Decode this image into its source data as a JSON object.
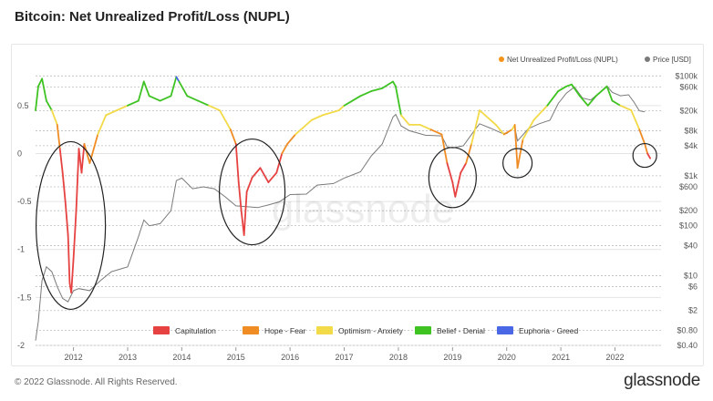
{
  "title": "Bitcoin: Net Unrealized Profit/Loss (NUPL)",
  "footer": {
    "copyright": "© 2022 Glassnode. All Rights Reserved.",
    "brand": "glassnode",
    "watermark": "glassnode"
  },
  "colors": {
    "Capitulation": "#e74242",
    "Hope - Fear": "#f08c24",
    "Optimism - Anxiety": "#f2da48",
    "Belief - Denial": "#3ec322",
    "Euphoria - Greed": "#4a68e6",
    "nupl_legend": "#f7931a",
    "price": "#7a7a7a"
  },
  "chart_data": {
    "type": "line",
    "title": "Bitcoin: Net Unrealized Profit/Loss (NUPL)",
    "xlim": [
      2011.3,
      2022.85
    ],
    "left_axis": {
      "ylim": [
        -2,
        0.85
      ],
      "ticks": [
        "0.5",
        "0",
        "-0.5",
        "-1",
        "-1.5",
        "-2"
      ],
      "tick_values": [
        0.5,
        0,
        -0.5,
        -1,
        -1.5,
        -2
      ]
    },
    "right_axis": {
      "scale": "log",
      "ylim": [
        0.4,
        120000
      ],
      "ticks": [
        "$100k",
        "$60k",
        "$20k",
        "$8k",
        "$4k",
        "$1k",
        "$600",
        "$200",
        "$100",
        "$40",
        "$10",
        "$6",
        "$2",
        "$0.80",
        "$0.40"
      ],
      "tick_values": [
        100000,
        60000,
        20000,
        8000,
        4000,
        1000,
        600,
        200,
        100,
        40,
        10,
        6,
        2,
        0.8,
        0.4
      ]
    },
    "x_ticks": [
      "2012",
      "2013",
      "2014",
      "2015",
      "2016",
      "2017",
      "2018",
      "2019",
      "2020",
      "2021",
      "2022"
    ],
    "x_tick_values": [
      2012,
      2013,
      2014,
      2015,
      2016,
      2017,
      2018,
      2019,
      2020,
      2021,
      2022
    ],
    "top_legend": [
      "Net Unrealized Profit/Loss (NUPL)",
      "Price [USD]"
    ],
    "zone_legend": [
      "Capitulation",
      "Hope - Fear",
      "Optimism - Anxiety",
      "Belief - Denial",
      "Euphoria - Greed"
    ],
    "grid": true,
    "nupl": [
      [
        2011.3,
        0.45
      ],
      [
        2011.35,
        0.7
      ],
      [
        2011.42,
        0.78
      ],
      [
        2011.5,
        0.55
      ],
      [
        2011.6,
        0.45
      ],
      [
        2011.7,
        0.3
      ],
      [
        2011.75,
        0.05
      ],
      [
        2011.8,
        -0.2
      ],
      [
        2011.85,
        -0.5
      ],
      [
        2011.9,
        -0.85
      ],
      [
        2011.93,
        -1.35
      ],
      [
        2011.96,
        -1.45
      ],
      [
        2012.0,
        -1.1
      ],
      [
        2012.05,
        -0.6
      ],
      [
        2012.1,
        0.05
      ],
      [
        2012.15,
        -0.2
      ],
      [
        2012.2,
        0.1
      ],
      [
        2012.3,
        -0.1
      ],
      [
        2012.45,
        0.2
      ],
      [
        2012.6,
        0.4
      ],
      [
        2012.8,
        0.45
      ],
      [
        2013.0,
        0.5
      ],
      [
        2013.2,
        0.55
      ],
      [
        2013.3,
        0.75
      ],
      [
        2013.4,
        0.6
      ],
      [
        2013.6,
        0.55
      ],
      [
        2013.8,
        0.6
      ],
      [
        2013.9,
        0.8
      ],
      [
        2013.95,
        0.75
      ],
      [
        2014.1,
        0.6
      ],
      [
        2014.3,
        0.55
      ],
      [
        2014.5,
        0.5
      ],
      [
        2014.7,
        0.45
      ],
      [
        2014.9,
        0.25
      ],
      [
        2015.0,
        0.1
      ],
      [
        2015.05,
        -0.3
      ],
      [
        2015.1,
        -0.6
      ],
      [
        2015.15,
        -0.85
      ],
      [
        2015.2,
        -0.4
      ],
      [
        2015.3,
        -0.25
      ],
      [
        2015.45,
        -0.15
      ],
      [
        2015.6,
        -0.3
      ],
      [
        2015.75,
        -0.2
      ],
      [
        2015.85,
        0.0
      ],
      [
        2015.95,
        0.1
      ],
      [
        2016.1,
        0.2
      ],
      [
        2016.4,
        0.35
      ],
      [
        2016.6,
        0.4
      ],
      [
        2016.9,
        0.45
      ],
      [
        2017.0,
        0.5
      ],
      [
        2017.3,
        0.6
      ],
      [
        2017.5,
        0.65
      ],
      [
        2017.7,
        0.68
      ],
      [
        2017.9,
        0.75
      ],
      [
        2017.95,
        0.7
      ],
      [
        2018.05,
        0.4
      ],
      [
        2018.2,
        0.3
      ],
      [
        2018.4,
        0.3
      ],
      [
        2018.6,
        0.25
      ],
      [
        2018.8,
        0.2
      ],
      [
        2018.9,
        -0.1
      ],
      [
        2019.0,
        -0.3
      ],
      [
        2019.05,
        -0.45
      ],
      [
        2019.15,
        -0.2
      ],
      [
        2019.25,
        -0.1
      ],
      [
        2019.35,
        0.1
      ],
      [
        2019.5,
        0.45
      ],
      [
        2019.6,
        0.4
      ],
      [
        2019.8,
        0.3
      ],
      [
        2019.95,
        0.2
      ],
      [
        2020.1,
        0.25
      ],
      [
        2020.15,
        0.3
      ],
      [
        2020.2,
        -0.15
      ],
      [
        2020.3,
        0.15
      ],
      [
        2020.5,
        0.35
      ],
      [
        2020.75,
        0.5
      ],
      [
        2020.95,
        0.65
      ],
      [
        2021.1,
        0.7
      ],
      [
        2021.2,
        0.72
      ],
      [
        2021.35,
        0.6
      ],
      [
        2021.5,
        0.5
      ],
      [
        2021.65,
        0.6
      ],
      [
        2021.85,
        0.7
      ],
      [
        2021.95,
        0.55
      ],
      [
        2022.1,
        0.5
      ],
      [
        2022.3,
        0.45
      ],
      [
        2022.45,
        0.25
      ],
      [
        2022.55,
        0.1
      ],
      [
        2022.6,
        0.0
      ],
      [
        2022.65,
        -0.05
      ]
    ],
    "price": [
      [
        2011.3,
        0.5
      ],
      [
        2011.35,
        1.2
      ],
      [
        2011.42,
        8
      ],
      [
        2011.5,
        15
      ],
      [
        2011.6,
        12
      ],
      [
        2011.7,
        6
      ],
      [
        2011.8,
        3.5
      ],
      [
        2011.9,
        3.0
      ],
      [
        2012.0,
        5
      ],
      [
        2012.1,
        5.5
      ],
      [
        2012.3,
        5
      ],
      [
        2012.5,
        8
      ],
      [
        2012.7,
        12
      ],
      [
        2013.0,
        15
      ],
      [
        2013.2,
        60
      ],
      [
        2013.3,
        130
      ],
      [
        2013.4,
        100
      ],
      [
        2013.6,
        110
      ],
      [
        2013.8,
        200
      ],
      [
        2013.9,
        800
      ],
      [
        2014.0,
        900
      ],
      [
        2014.2,
        550
      ],
      [
        2014.4,
        600
      ],
      [
        2014.6,
        550
      ],
      [
        2014.8,
        380
      ],
      [
        2015.0,
        250
      ],
      [
        2015.2,
        240
      ],
      [
        2015.4,
        230
      ],
      [
        2015.6,
        260
      ],
      [
        2015.8,
        300
      ],
      [
        2016.0,
        420
      ],
      [
        2016.3,
        430
      ],
      [
        2016.5,
        650
      ],
      [
        2016.8,
        700
      ],
      [
        2017.0,
        900
      ],
      [
        2017.3,
        1200
      ],
      [
        2017.5,
        2500
      ],
      [
        2017.7,
        4300
      ],
      [
        2017.9,
        15000
      ],
      [
        2017.95,
        17000
      ],
      [
        2018.05,
        10000
      ],
      [
        2018.2,
        8000
      ],
      [
        2018.5,
        6500
      ],
      [
        2018.8,
        6300
      ],
      [
        2018.9,
        3800
      ],
      [
        2019.0,
        3600
      ],
      [
        2019.2,
        4000
      ],
      [
        2019.4,
        8000
      ],
      [
        2019.5,
        11000
      ],
      [
        2019.7,
        9000
      ],
      [
        2019.9,
        7200
      ],
      [
        2020.0,
        7000
      ],
      [
        2020.15,
        9500
      ],
      [
        2020.2,
        5000
      ],
      [
        2020.4,
        8800
      ],
      [
        2020.6,
        11000
      ],
      [
        2020.8,
        13000
      ],
      [
        2020.95,
        28000
      ],
      [
        2021.1,
        45000
      ],
      [
        2021.25,
        60000
      ],
      [
        2021.4,
        36000
      ],
      [
        2021.55,
        33000
      ],
      [
        2021.7,
        45000
      ],
      [
        2021.85,
        63000
      ],
      [
        2021.95,
        47000
      ],
      [
        2022.1,
        40000
      ],
      [
        2022.25,
        42000
      ],
      [
        2022.35,
        30000
      ],
      [
        2022.45,
        20000
      ],
      [
        2022.55,
        19000
      ]
    ],
    "highlight_circles": [
      "2011-2012 bottom",
      "2015 bottom",
      "2018-2019 bottom",
      "2020 crash",
      "2022 current"
    ]
  }
}
